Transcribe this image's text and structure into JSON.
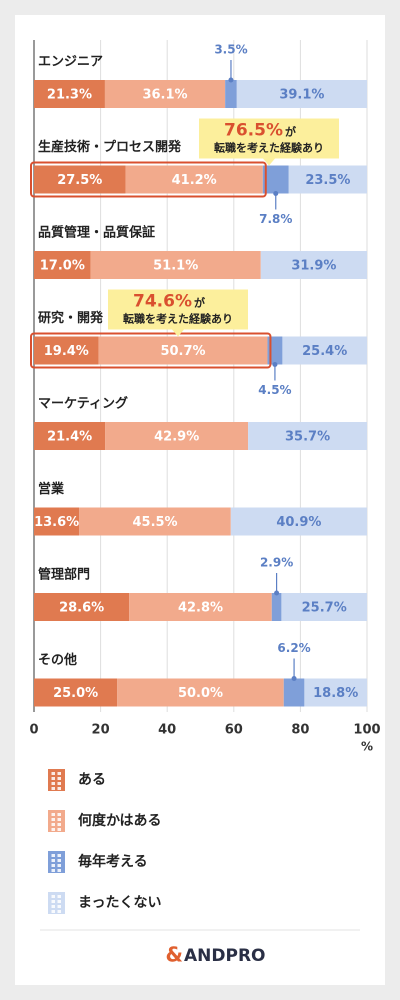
{
  "chart_data": {
    "type": "stacked-bar-horizontal",
    "categories": [
      "エンジニア",
      "生産技術・プロセス開発",
      "品質管理・品質保証",
      "研究・開発",
      "マーケティング",
      "営業",
      "管理部門",
      "その他"
    ],
    "series": [
      {
        "name": "ある",
        "color": "#e07a50",
        "values": [
          21.3,
          27.5,
          17.0,
          19.4,
          21.4,
          13.6,
          28.6,
          25.0
        ],
        "value_labels": [
          "21.3%",
          "27.5%",
          "17.0%",
          "19.4%",
          "21.4%",
          "13.6%",
          "28.6%",
          "25.0%"
        ]
      },
      {
        "name": "何度かはある",
        "color": "#f2aa8c",
        "values": [
          36.1,
          41.2,
          51.1,
          50.7,
          42.9,
          45.5,
          42.8,
          50.0
        ],
        "value_labels": [
          "36.1%",
          "41.2%",
          "51.1%",
          "50.7%",
          "42.9%",
          "45.5%",
          "42.8%",
          "50.0%"
        ]
      },
      {
        "name": "毎年考える",
        "color": "#7f9fd9",
        "values": [
          3.5,
          7.8,
          0,
          4.5,
          0,
          0,
          2.9,
          6.2
        ],
        "value_labels": [
          "3.5%",
          "7.8%",
          null,
          "4.5%",
          null,
          null,
          "2.9%",
          "6.2%"
        ]
      },
      {
        "name": "まったくない",
        "color": "#cddbf2",
        "values": [
          39.1,
          23.5,
          31.9,
          25.4,
          35.7,
          40.9,
          25.7,
          18.8
        ],
        "value_labels": [
          "39.1%",
          "23.5%",
          "31.9%",
          "25.4%",
          "35.7%",
          "40.9%",
          "25.7%",
          "18.8%"
        ]
      }
    ],
    "xlim": [
      0,
      100
    ],
    "xticks": [
      0,
      20,
      40,
      60,
      80,
      100
    ],
    "x_unit": "%",
    "grid": true,
    "annotations": [
      {
        "category": "生産技術・プロセス開発",
        "highlight": "76.5%",
        "text": "が",
        "subtext": "転職を考えた経験あり"
      },
      {
        "category": "研究・開発",
        "highlight": "74.6%",
        "text": "が",
        "subtext": "転職を考えた経験あり"
      }
    ]
  },
  "footer": {
    "logo_mark": "&",
    "logo_text": "ANDPRO"
  }
}
